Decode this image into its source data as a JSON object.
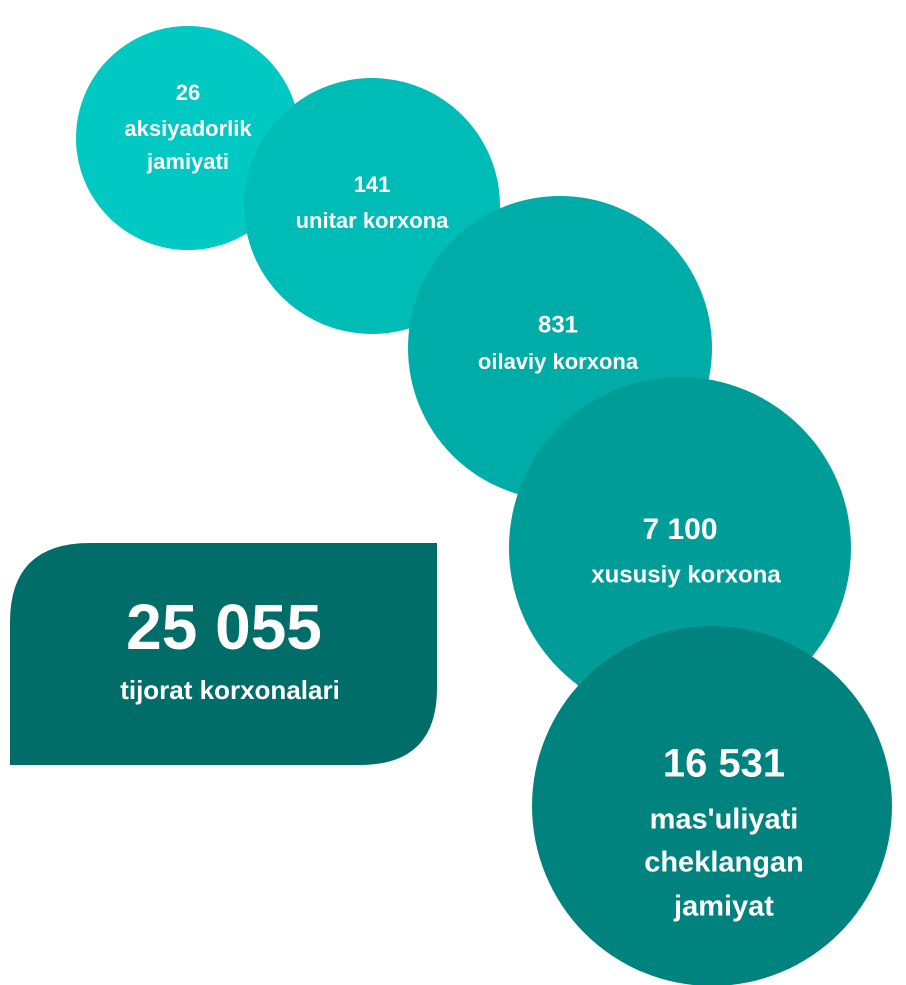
{
  "summary": {
    "value": "25 055",
    "label": "tijorat korxonalari"
  },
  "nodes": [
    {
      "value": "26",
      "label": [
        "aksiyadorlik",
        "jamiyati"
      ]
    },
    {
      "value": "141",
      "label": [
        "unitar korxona"
      ]
    },
    {
      "value": "831",
      "label": [
        "oilaviy korxona"
      ]
    },
    {
      "value": "7 100",
      "label": [
        "xususiy korxona"
      ]
    },
    {
      "value": "16 531",
      "label": [
        "mas'uliyati",
        "cheklangan",
        "jamiyat"
      ]
    }
  ]
}
